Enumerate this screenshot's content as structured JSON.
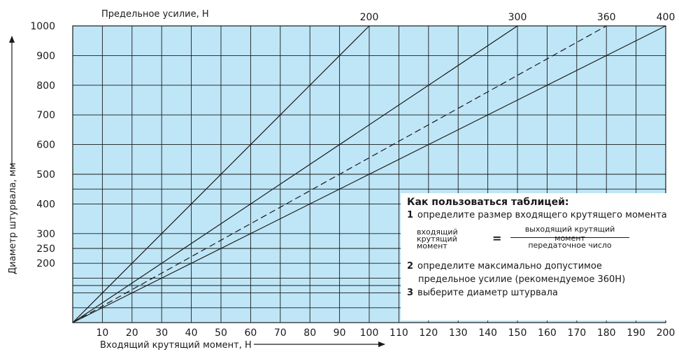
{
  "colors": {
    "plot_bg": "#bfe6f7",
    "grid": "#1a1a1a",
    "line": "#1a1a1a",
    "frame": "#1a1a1a"
  },
  "chart_data": {
    "type": "line",
    "xlabel": "Входящий крутящий момент, Н",
    "ylabel": "Диаметр штурвала, мм",
    "top_axis_label": "Предельное усилие, Н",
    "xlim": [
      0,
      200
    ],
    "ylim": [
      0,
      1000
    ],
    "x_ticks": [
      10,
      20,
      30,
      40,
      50,
      60,
      70,
      80,
      90,
      100,
      110,
      120,
      130,
      140,
      150,
      160,
      170,
      180,
      190,
      200
    ],
    "y_ticks": [
      200,
      250,
      300,
      400,
      500,
      600,
      700,
      800,
      900,
      1000
    ],
    "y_gridlines": [
      50,
      100,
      125,
      150,
      200,
      250,
      300,
      400,
      450,
      500,
      600,
      700,
      800,
      900,
      1000
    ],
    "grid": true,
    "series": [
      {
        "name": "200",
        "x": [
          0,
          100
        ],
        "y": [
          0,
          1000
        ],
        "style": "solid"
      },
      {
        "name": "300",
        "x": [
          0,
          150
        ],
        "y": [
          0,
          1000
        ],
        "style": "solid"
      },
      {
        "name": "360",
        "x": [
          0,
          180
        ],
        "y": [
          0,
          1000
        ],
        "style": "dashed"
      },
      {
        "name": "400",
        "x": [
          0,
          200
        ],
        "y": [
          0,
          1000
        ],
        "style": "solid"
      }
    ]
  },
  "info": {
    "title": "Как пользоваться таблицей:",
    "step1_num": "1",
    "step1": "определите размер входящего крутящего момента",
    "formula_lhs_1": "входящий",
    "formula_lhs_2": "крутящий",
    "formula_lhs_3": "момент",
    "formula_eq": "=",
    "formula_numerator": "выходящий крутящий момент",
    "formula_denominator": "передаточное число",
    "step2_num": "2",
    "step2_line1": "определите максимально допустимое",
    "step2_line2": "предельное усилие",
    "step2_note": "(рекомендуемое 360Н)",
    "step3_num": "3",
    "step3": "выберите диаметр штурвала"
  }
}
